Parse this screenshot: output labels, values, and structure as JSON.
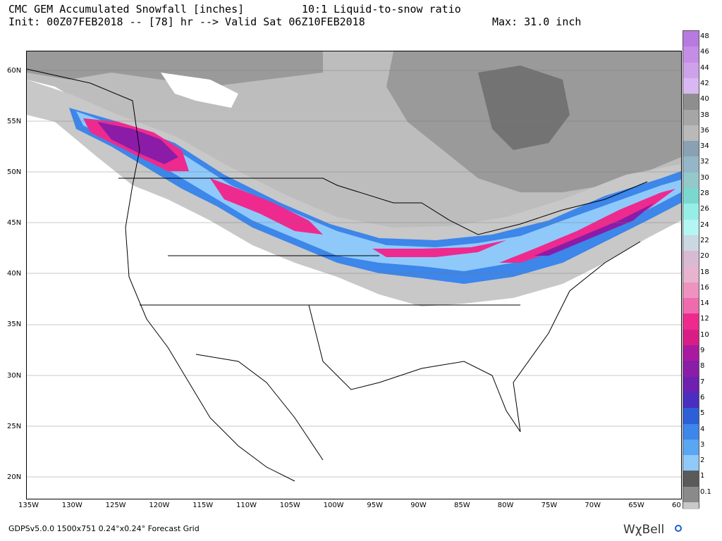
{
  "header": {
    "title": "CMC GEM Accumulated Snowfall [inches]",
    "subtitle": "Init: 00Z07FEB2018 -- [78] hr --> Valid Sat 06Z10FEB2018",
    "ratio_note": "10:1 Liquid-to-snow ratio",
    "max_label": "Max: 31.0 inch"
  },
  "axes": {
    "lat_labels": [
      "60N",
      "55N",
      "50N",
      "45N",
      "40N",
      "35N",
      "30N",
      "25N",
      "20N"
    ],
    "lon_labels": [
      "135W",
      "130W",
      "125W",
      "120W",
      "115W",
      "110W",
      "105W",
      "100W",
      "95W",
      "90W",
      "85W",
      "80W",
      "75W",
      "70W",
      "65W",
      "60"
    ]
  },
  "legend": {
    "labels": [
      "48",
      "46",
      "44",
      "42",
      "40",
      "38",
      "36",
      "34",
      "32",
      "30",
      "28",
      "26",
      "24",
      "22",
      "20",
      "18",
      "16",
      "14",
      "12",
      "10",
      "9",
      "8",
      "7",
      "6",
      "5",
      "4",
      "3",
      "2",
      "1",
      "0.1"
    ],
    "colors": [
      "#b77ae0",
      "#c48ee6",
      "#cda2eb",
      "#d8b8f0",
      "#8e8e8e",
      "#a6a6a6",
      "#b9b9b9",
      "#8aa0b3",
      "#94b6c9",
      "#93c9c9",
      "#7ad8d0",
      "#97eee6",
      "#b3f6f3",
      "#c9d8e3",
      "#d8bbd2",
      "#e8b3cf",
      "#ee93c0",
      "#f06aae",
      "#ee2a8e",
      "#d81e86",
      "#aa1aa0",
      "#8a1ca8",
      "#6e20b0",
      "#4a2ec0",
      "#2c5fd8",
      "#3d86ea",
      "#5aa6f2",
      "#8fc9fa",
      "#5a5a5a",
      "#8a8a8a"
    ],
    "bottom_color": "#c8c8c8"
  },
  "footer": {
    "grid_info": "GDPSv5.0.0 1500x751 0.24°x0.24° Forecast Grid",
    "brand": "WχBell"
  }
}
